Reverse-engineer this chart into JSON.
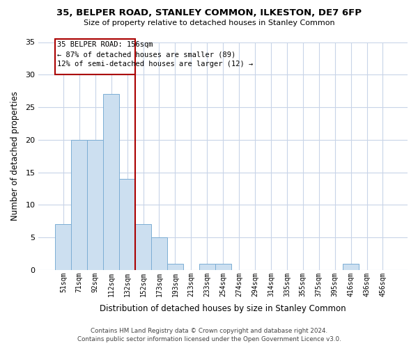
{
  "title": "35, BELPER ROAD, STANLEY COMMON, ILKESTON, DE7 6FP",
  "subtitle": "Size of property relative to detached houses in Stanley Common",
  "xlabel": "Distribution of detached houses by size in Stanley Common",
  "ylabel": "Number of detached properties",
  "bar_labels": [
    "51sqm",
    "71sqm",
    "92sqm",
    "112sqm",
    "132sqm",
    "152sqm",
    "173sqm",
    "193sqm",
    "213sqm",
    "233sqm",
    "254sqm",
    "274sqm",
    "294sqm",
    "314sqm",
    "335sqm",
    "355sqm",
    "375sqm",
    "395sqm",
    "416sqm",
    "436sqm",
    "456sqm"
  ],
  "bar_values": [
    7,
    20,
    20,
    27,
    14,
    7,
    5,
    1,
    0,
    1,
    1,
    0,
    0,
    0,
    0,
    0,
    0,
    0,
    1,
    0,
    0
  ],
  "bar_color": "#ccdff0",
  "bar_edge_color": "#7badd4",
  "ylim": [
    0,
    35
  ],
  "yticks": [
    0,
    5,
    10,
    15,
    20,
    25,
    30,
    35
  ],
  "marker_line_color": "#aa0000",
  "annotation_line1": "35 BELPER ROAD: 156sqm",
  "annotation_line2": "← 87% of detached houses are smaller (89)",
  "annotation_line3": "12% of semi-detached houses are larger (12) →",
  "footer_line1": "Contains HM Land Registry data © Crown copyright and database right 2024.",
  "footer_line2": "Contains public sector information licensed under the Open Government Licence v3.0.",
  "bg_color": "#ffffff",
  "grid_color": "#c8d4e8",
  "marker_bar_index": 5
}
